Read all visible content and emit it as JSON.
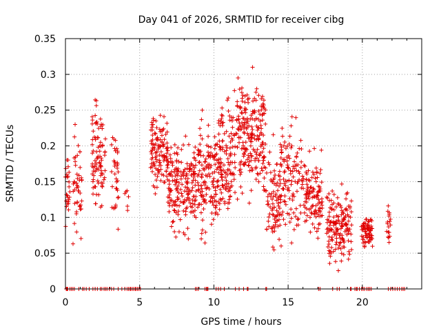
{
  "chart_data": {
    "type": "scatter",
    "title": "Day 041 of 2026, SRMTID for receiver cibg",
    "xlabel": "GPS time / hours",
    "ylabel": "SRMTID / TECUs",
    "xlim": [
      0,
      24
    ],
    "ylim": [
      0,
      0.35
    ],
    "x_ticks": [
      0,
      5,
      10,
      15,
      20
    ],
    "x_tick_labels": [
      "0",
      "5",
      "10",
      "15",
      "20"
    ],
    "y_ticks": [
      0,
      0.05,
      0.1,
      0.15,
      0.2,
      0.25,
      0.3,
      0.35
    ],
    "y_tick_labels": [
      "0",
      "0.05",
      "0.1",
      "0.15",
      "0.2",
      "0.25",
      "0.3",
      "0.35"
    ],
    "grid": true,
    "marker": "+",
    "color": "#e00000",
    "series": [
      {
        "name": "SRMTID",
        "clusters": [
          {
            "x": [
              0.0,
              0.3
            ],
            "y": [
              0.08,
              0.2
            ],
            "n": 25
          },
          {
            "x": [
              0.5,
              1.1
            ],
            "y": [
              0.055,
              0.23
            ],
            "n": 45
          },
          {
            "x": [
              1.8,
              2.7
            ],
            "y": [
              0.09,
              0.27
            ],
            "n": 90
          },
          {
            "x": [
              3.1,
              3.6
            ],
            "y": [
              0.08,
              0.23
            ],
            "n": 35
          },
          {
            "x": [
              4.0,
              4.3
            ],
            "y": [
              0.09,
              0.16
            ],
            "n": 6
          },
          {
            "x": [
              5.7,
              6.9
            ],
            "y": [
              0.12,
              0.26
            ],
            "n": 120
          },
          {
            "x": [
              6.9,
              8.8
            ],
            "y": [
              0.07,
              0.22
            ],
            "n": 190
          },
          {
            "x": [
              8.9,
              10.0
            ],
            "y": [
              0.055,
              0.25
            ],
            "n": 110
          },
          {
            "x": [
              10.0,
              11.5
            ],
            "y": [
              0.08,
              0.28
            ],
            "n": 160
          },
          {
            "x": [
              11.5,
              12.8
            ],
            "y": [
              0.12,
              0.31
            ],
            "n": 140
          },
          {
            "x": [
              12.8,
              13.5
            ],
            "y": [
              0.1,
              0.3
            ],
            "n": 80
          },
          {
            "x": [
              13.5,
              14.5
            ],
            "y": [
              0.04,
              0.22
            ],
            "n": 90
          },
          {
            "x": [
              14.5,
              16.0
            ],
            "y": [
              0.06,
              0.25
            ],
            "n": 110
          },
          {
            "x": [
              16.0,
              17.3
            ],
            "y": [
              0.06,
              0.2
            ],
            "n": 110
          },
          {
            "x": [
              17.6,
              19.3
            ],
            "y": [
              0.025,
              0.15
            ],
            "n": 160
          },
          {
            "x": [
              19.9,
              20.7
            ],
            "y": [
              0.05,
              0.11
            ],
            "n": 70
          },
          {
            "x": [
              21.6,
              21.9
            ],
            "y": [
              0.06,
              0.13
            ],
            "n": 18
          }
        ],
        "zero_points": [
          0.05,
          0.1,
          0.12,
          0.15,
          0.3,
          0.4,
          0.5,
          0.6,
          0.9,
          1.15,
          1.25,
          1.4,
          1.6,
          1.85,
          2.0,
          2.15,
          2.35,
          2.45,
          2.6,
          2.7,
          2.8,
          2.95,
          3.1,
          3.25,
          3.55,
          3.8,
          4.0,
          4.15,
          4.25,
          4.35,
          4.4,
          4.5,
          4.6,
          4.7,
          4.75,
          4.85,
          4.95,
          5.05,
          8.75,
          8.85,
          8.95,
          9.4,
          9.5,
          9.55,
          9.6,
          10.15,
          10.3,
          10.45,
          10.7,
          11.45,
          11.7,
          12.0,
          12.25,
          12.3,
          13.5,
          13.55,
          17.05,
          17.15,
          18.0,
          18.3,
          18.45,
          19.2,
          19.25,
          19.5,
          19.6,
          19.65,
          19.8,
          19.95,
          20.05,
          20.15,
          20.3,
          20.4,
          20.5,
          20.6,
          21.75,
          21.9,
          22.05,
          22.2,
          22.35,
          22.5,
          22.65,
          22.75,
          22.85
        ]
      }
    ]
  }
}
